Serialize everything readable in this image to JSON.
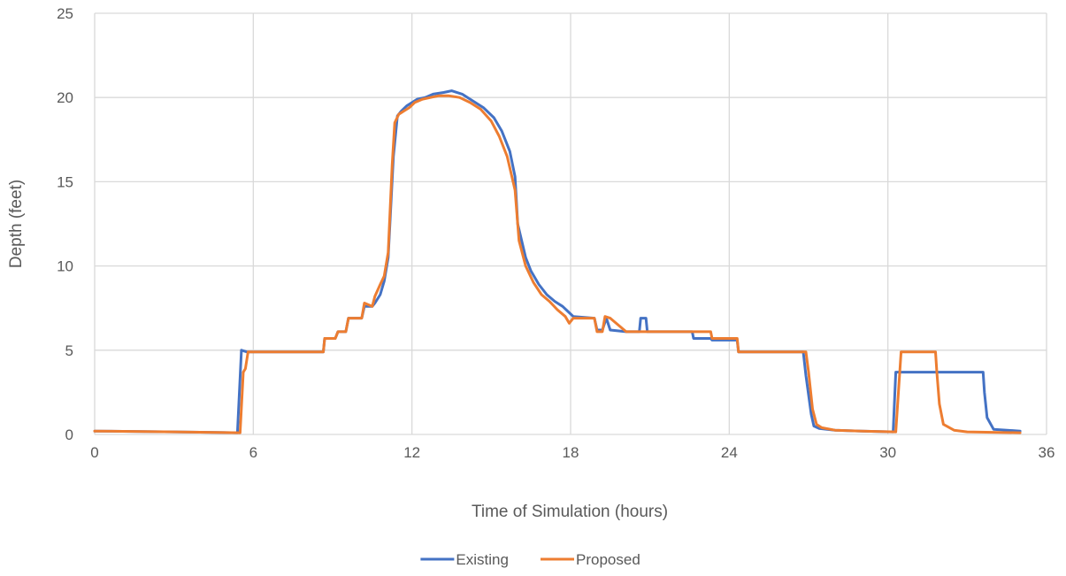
{
  "chart_data": {
    "type": "line",
    "xlabel": "Time of Simulation (hours)",
    "ylabel": "Depth (feet)",
    "xlim": [
      0,
      36
    ],
    "ylim": [
      0,
      25
    ],
    "xticks": [
      0,
      6,
      12,
      18,
      24,
      30,
      36
    ],
    "yticks": [
      0,
      5,
      10,
      15,
      20,
      25
    ],
    "grid": true,
    "legend_position": "bottom",
    "series": [
      {
        "name": "Existing",
        "color": "#4472c4",
        "x": [
          0,
          3,
          5.4,
          5.55,
          5.75,
          8,
          8.65,
          8.7,
          9.1,
          9.2,
          9.5,
          9.6,
          10.1,
          10.2,
          10.5,
          10.6,
          10.8,
          10.95,
          11.1,
          11.3,
          11.45,
          11.6,
          11.8,
          12.0,
          12.2,
          12.5,
          12.8,
          13.2,
          13.5,
          13.9,
          14.3,
          14.7,
          15.1,
          15.4,
          15.7,
          15.9,
          16.0,
          16.3,
          16.5,
          16.8,
          17.1,
          17.4,
          17.7,
          17.9,
          18.1,
          18.9,
          19.0,
          19.2,
          19.35,
          19.5,
          20.1,
          20.6,
          20.65,
          20.85,
          20.9,
          22.0,
          22.6,
          22.65,
          23.3,
          23.35,
          24.3,
          24.35,
          26.8,
          26.9,
          27.1,
          27.2,
          27.4,
          28.0,
          29,
          30.2,
          30.3,
          30.45,
          32.5,
          33.6,
          33.65,
          33.75,
          34,
          35
        ],
        "values": [
          0.2,
          0.15,
          0.1,
          5.0,
          4.9,
          4.9,
          4.9,
          5.7,
          5.7,
          6.1,
          6.1,
          6.9,
          6.9,
          7.6,
          7.6,
          7.8,
          8.3,
          9.1,
          10.5,
          16.5,
          18.9,
          19.2,
          19.5,
          19.7,
          19.9,
          20.0,
          20.2,
          20.3,
          20.4,
          20.2,
          19.8,
          19.4,
          18.8,
          18.0,
          16.8,
          15.3,
          12.5,
          10.5,
          9.7,
          8.9,
          8.3,
          7.9,
          7.6,
          7.3,
          7.0,
          6.9,
          6.2,
          6.2,
          6.9,
          6.2,
          6.1,
          6.1,
          6.9,
          6.9,
          6.1,
          6.1,
          6.1,
          5.7,
          5.7,
          5.6,
          5.6,
          4.9,
          4.9,
          3.5,
          1.2,
          0.5,
          0.35,
          0.25,
          0.2,
          0.15,
          3.7,
          3.7,
          3.7,
          3.7,
          2.5,
          1.0,
          0.3,
          0.2
        ]
      },
      {
        "name": "Proposed",
        "color": "#ed7d31",
        "x": [
          0,
          3,
          5.5,
          5.62,
          5.7,
          5.8,
          8,
          8.65,
          8.7,
          9.1,
          9.2,
          9.5,
          9.6,
          10.1,
          10.2,
          10.5,
          10.6,
          10.8,
          10.95,
          11.1,
          11.25,
          11.35,
          11.5,
          11.7,
          11.9,
          12.1,
          12.4,
          12.7,
          13.0,
          13.4,
          13.8,
          14.2,
          14.6,
          15.0,
          15.3,
          15.6,
          15.9,
          16.05,
          16.3,
          16.6,
          16.9,
          17.2,
          17.5,
          17.8,
          17.95,
          18.1,
          18.9,
          19.0,
          19.2,
          19.3,
          19.5,
          20.1,
          21.0,
          22.0,
          23.3,
          23.35,
          24.3,
          24.35,
          26.9,
          27.0,
          27.15,
          27.3,
          27.5,
          28.0,
          29,
          30.3,
          30.5,
          31.8,
          31.85,
          31.95,
          32.1,
          32.5,
          33,
          35
        ],
        "values": [
          0.2,
          0.15,
          0.1,
          3.7,
          3.9,
          4.9,
          4.9,
          4.9,
          5.7,
          5.7,
          6.1,
          6.1,
          6.9,
          6.9,
          7.8,
          7.6,
          8.2,
          8.9,
          9.4,
          10.8,
          16.0,
          18.5,
          19.0,
          19.2,
          19.4,
          19.7,
          19.9,
          20.0,
          20.1,
          20.1,
          20.0,
          19.7,
          19.3,
          18.6,
          17.7,
          16.5,
          14.5,
          11.5,
          10.0,
          9.0,
          8.3,
          7.9,
          7.4,
          7.0,
          6.6,
          6.9,
          6.9,
          6.1,
          6.1,
          7.0,
          6.9,
          6.1,
          6.1,
          6.1,
          6.1,
          5.7,
          5.7,
          4.9,
          4.9,
          3.7,
          1.5,
          0.6,
          0.4,
          0.25,
          0.2,
          0.15,
          4.9,
          4.9,
          3.7,
          1.8,
          0.6,
          0.25,
          0.15,
          0.1
        ]
      }
    ]
  }
}
